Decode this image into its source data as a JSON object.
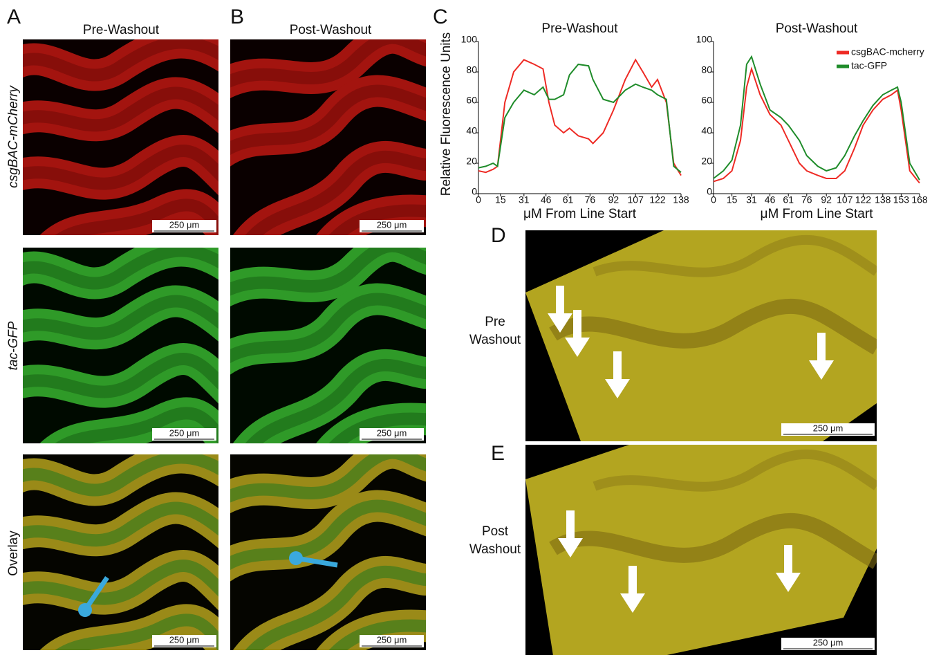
{
  "figure": {
    "panel_labels": [
      "A",
      "B",
      "C",
      "D",
      "E"
    ],
    "column_titles": [
      "Pre-Washout",
      "Post-Washout"
    ],
    "row_labels": [
      "csgBAC-mCherry",
      "tac-GFP",
      "Overlay"
    ],
    "d_label": [
      "Pre",
      "Washout"
    ],
    "e_label": [
      "Post",
      "Washout"
    ],
    "scale_bars": [
      "250 μm",
      "250 μm",
      "250 μm",
      "250 μm",
      "250 μm",
      "250 μm",
      "250 μm",
      "250 μm"
    ]
  },
  "chart_data": [
    {
      "type": "line",
      "title": "Pre-Washout",
      "x_label": "μM From Line Start",
      "y_label": "Relative Fluorescence Units",
      "x": [
        0,
        5,
        10,
        13,
        18,
        24,
        31,
        38,
        44,
        48,
        52,
        58,
        62,
        68,
        75,
        78,
        85,
        92,
        100,
        107,
        112,
        118,
        122,
        128,
        133,
        138
      ],
      "series": [
        {
          "color": "#ee2a24",
          "values": [
            15,
            14,
            16,
            18,
            60,
            80,
            88,
            85,
            82,
            60,
            45,
            40,
            43,
            38,
            36,
            33,
            40,
            55,
            75,
            88,
            80,
            70,
            75,
            60,
            20,
            12
          ]
        },
        {
          "color": "#1f8c2a",
          "values": [
            17,
            18,
            20,
            18,
            50,
            60,
            68,
            65,
            70,
            62,
            62,
            65,
            78,
            85,
            84,
            75,
            62,
            60,
            68,
            72,
            70,
            68,
            65,
            62,
            18,
            14
          ]
        }
      ],
      "xlim": [
        0,
        138
      ],
      "xticks": [
        0,
        15,
        31,
        46,
        61,
        76,
        92,
        107,
        122,
        138
      ],
      "ylim": [
        0,
        100
      ],
      "yticks": [
        0,
        20,
        40,
        60,
        80,
        100
      ]
    },
    {
      "type": "line",
      "title": "Post-Washout",
      "x_label": "μM From Line Start",
      "x": [
        0,
        8,
        15,
        22,
        27,
        31,
        38,
        46,
        55,
        61,
        70,
        76,
        85,
        92,
        100,
        107,
        115,
        122,
        130,
        138,
        145,
        150,
        153,
        160,
        168
      ],
      "series": [
        {
          "name": "csgBAC-mcherry",
          "color": "#ee2a24",
          "values": [
            8,
            10,
            15,
            35,
            70,
            82,
            65,
            52,
            45,
            35,
            20,
            15,
            12,
            10,
            10,
            15,
            30,
            45,
            55,
            62,
            65,
            68,
            55,
            15,
            7
          ]
        },
        {
          "name": "tac-GFP",
          "color": "#1f8c2a",
          "values": [
            10,
            15,
            22,
            45,
            85,
            90,
            72,
            55,
            50,
            45,
            35,
            25,
            18,
            15,
            17,
            25,
            38,
            48,
            58,
            65,
            68,
            70,
            60,
            20,
            9
          ]
        }
      ],
      "xlim": [
        0,
        168
      ],
      "xticks": [
        0,
        15,
        31,
        46,
        61,
        76,
        92,
        107,
        122,
        138,
        153,
        168
      ],
      "ylim": [
        0,
        100
      ],
      "yticks": [
        0,
        20,
        40,
        60,
        80,
        100
      ],
      "legend": "upper right"
    }
  ]
}
